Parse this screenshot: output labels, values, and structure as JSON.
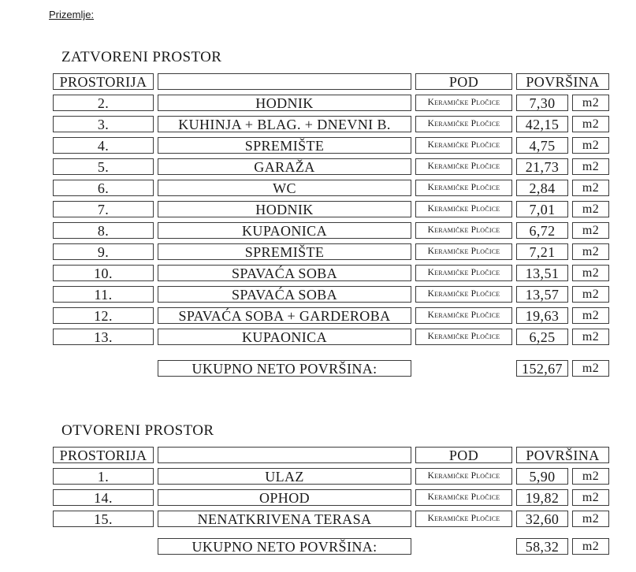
{
  "page_title": "Prizemlje:",
  "colors": {
    "text": "#1a1a1a",
    "border": "#3b3b3b",
    "background": "#ffffff"
  },
  "table_header": {
    "prostorija": "PROSTORIJA",
    "name": "",
    "pod": "POD",
    "povrsina": "POVRŠINA"
  },
  "sections": [
    {
      "heading": "ZATVORENI PROSTOR",
      "rows": [
        {
          "num": "2.",
          "name": "HODNIK",
          "pod": "Keramičke Pločice",
          "value": "7,30",
          "unit": "m2"
        },
        {
          "num": "3.",
          "name": "KUHINJA + BLAG. + DNEVNI B.",
          "pod": "Keramičke Pločice",
          "value": "42,15",
          "unit": "m2"
        },
        {
          "num": "4.",
          "name": "SPREMIŠTE",
          "pod": "Keramičke Pločice",
          "value": "4,75",
          "unit": "m2"
        },
        {
          "num": "5.",
          "name": "GARAŽA",
          "pod": "Keramičke Pločice",
          "value": "21,73",
          "unit": "m2"
        },
        {
          "num": "6.",
          "name": "WC",
          "pod": "Keramičke Pločice",
          "value": "2,84",
          "unit": "m2"
        },
        {
          "num": "7.",
          "name": "HODNIK",
          "pod": "Keramičke Pločice",
          "value": "7,01",
          "unit": "m2"
        },
        {
          "num": "8.",
          "name": "KUPAONICA",
          "pod": "Keramičke Pločice",
          "value": "6,72",
          "unit": "m2"
        },
        {
          "num": "9.",
          "name": "SPREMIŠTE",
          "pod": "Keramičke Pločice",
          "value": "7,21",
          "unit": "m2"
        },
        {
          "num": "10.",
          "name": "SPAVAĆA SOBA",
          "pod": "Keramičke Pločice",
          "value": "13,51",
          "unit": "m2"
        },
        {
          "num": "11.",
          "name": "SPAVAĆA SOBA",
          "pod": "Keramičke Pločice",
          "value": "13,57",
          "unit": "m2"
        },
        {
          "num": "12.",
          "name": "SPAVAĆA SOBA + GARDEROBA",
          "pod": "Keramičke Pločice",
          "value": "19,63",
          "unit": "m2"
        },
        {
          "num": "13.",
          "name": "KUPAONICA",
          "pod": "Keramičke Pločice",
          "value": "6,25",
          "unit": "m2"
        }
      ],
      "total": {
        "label": "UKUPNO NETO POVRŠINA:",
        "value": "152,67",
        "unit": "m2"
      }
    },
    {
      "heading": "OTVORENI PROSTOR",
      "rows": [
        {
          "num": "1.",
          "name": "ULAZ",
          "pod": "Keramičke Pločice",
          "value": "5,90",
          "unit": "m2"
        },
        {
          "num": "14.",
          "name": "OPHOD",
          "pod": "Keramičke Pločice",
          "value": "19,82",
          "unit": "m2"
        },
        {
          "num": "15.",
          "name": "NENATKRIVENA TERASA",
          "pod": "Keramičke Pločice",
          "value": "32,60",
          "unit": "m2"
        }
      ],
      "total": {
        "label": "UKUPNO NETO POVRŠINA:",
        "value": "58,32",
        "unit": "m2"
      }
    }
  ]
}
